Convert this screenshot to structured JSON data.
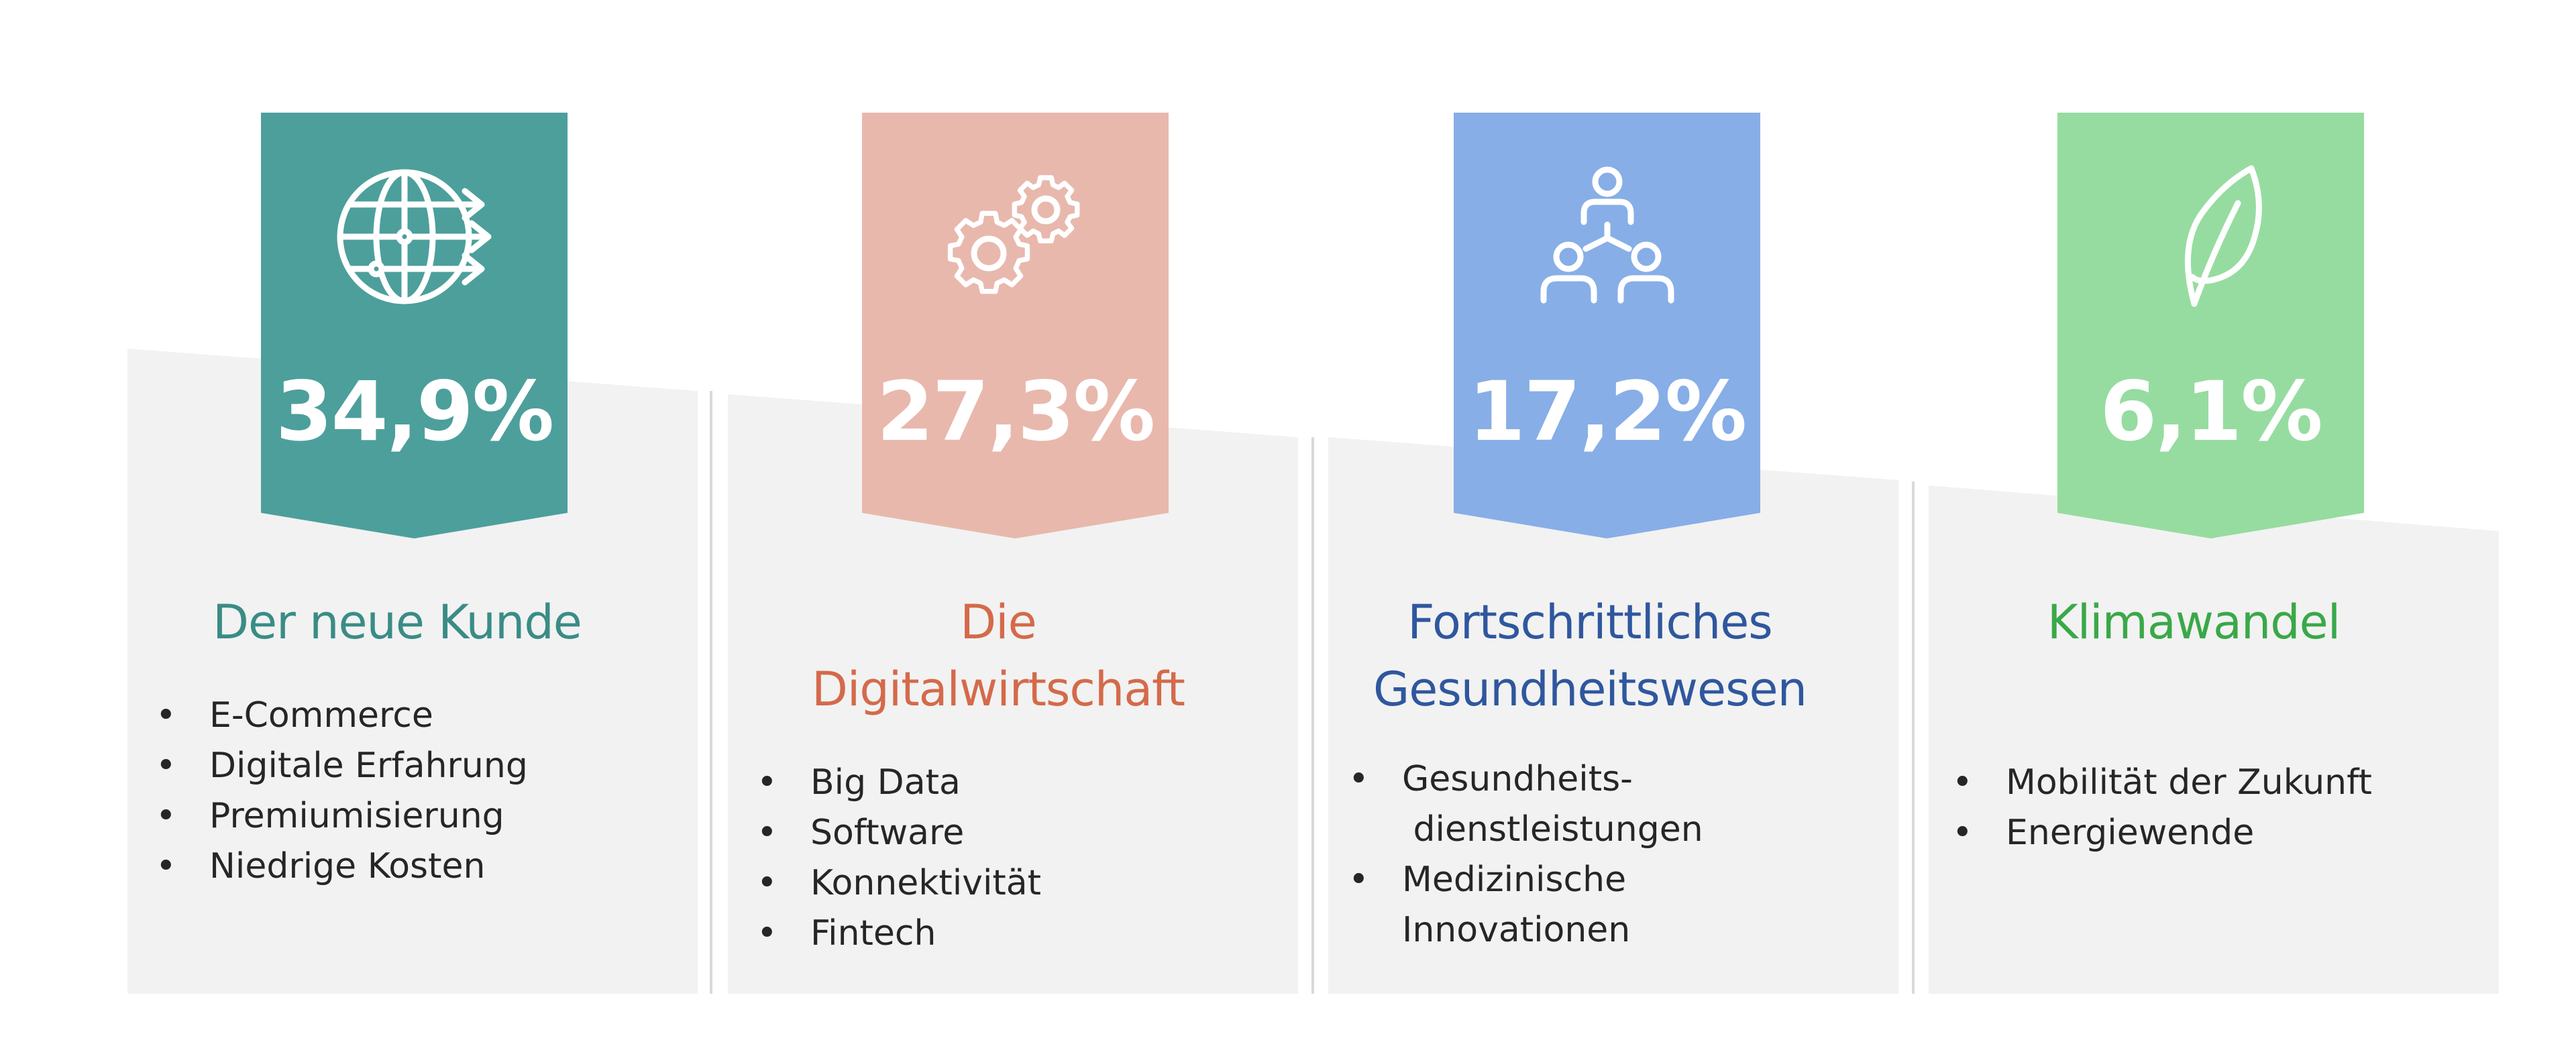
{
  "colors": {
    "teal": "#4d9f9c",
    "salmon": "#e8b8ad",
    "blue": "#87aee6",
    "green": "#96dca0",
    "title_teal": "#3a8c86",
    "title_orange": "#d46a4a",
    "title_blue": "#2f579e",
    "title_green": "#3aa848",
    "card_gray": "#f2f2f2"
  },
  "cards": [
    {
      "icon": "globe-arrows-icon",
      "percent": "34,9%",
      "title_lines": [
        "Der neue Kunde"
      ],
      "items": [
        "E-Commerce",
        "Digitale Erfahrung",
        "Premiumisierung",
        "Niedrige Kosten"
      ]
    },
    {
      "icon": "gears-icon",
      "percent": "27,3%",
      "title_lines": [
        "Die",
        "Digitalwirtschaft"
      ],
      "items": [
        "Big Data",
        "Software",
        "Konnektivität",
        "Fintech"
      ]
    },
    {
      "icon": "people-network-icon",
      "percent": "17,2%",
      "title_lines": [
        "Fortschrittliches",
        "Gesundheitswesen"
      ],
      "items": [
        "Gesundheits- dienstleistungen",
        "Medizinische Innovationen"
      ]
    },
    {
      "icon": "leaf-icon",
      "percent": "6,1%",
      "title_lines": [
        "Klimawandel"
      ],
      "items": [
        "Mobilität der Zukunft",
        "Energiewende"
      ]
    }
  ]
}
